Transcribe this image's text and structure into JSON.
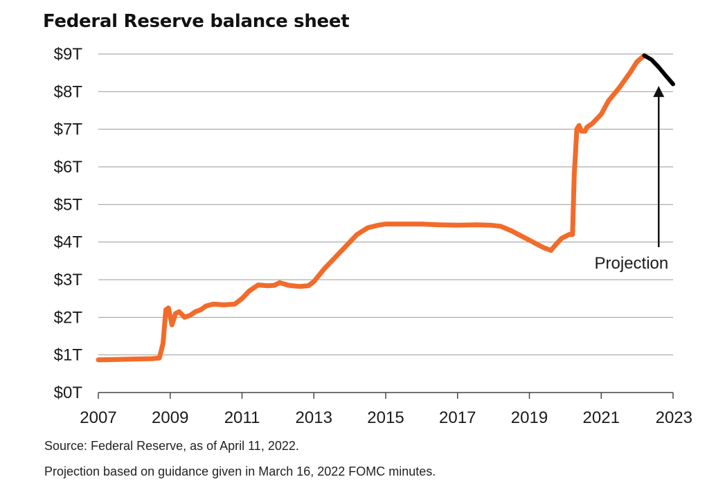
{
  "chart_data": {
    "type": "line",
    "title": "Federal Reserve balance sheet",
    "xlabel": "",
    "ylabel": "",
    "xlim": [
      2007,
      2023
    ],
    "ylim": [
      0,
      9
    ],
    "grid": "horizontal",
    "x_ticks": [
      2007,
      2009,
      2011,
      2013,
      2015,
      2017,
      2019,
      2021,
      2023
    ],
    "x_tick_labels": [
      "2007",
      "2009",
      "2011",
      "2013",
      "2015",
      "2017",
      "2019",
      "2021",
      "2023"
    ],
    "y_ticks": [
      0,
      1,
      2,
      3,
      4,
      5,
      6,
      7,
      8,
      9
    ],
    "y_tick_labels": [
      "$0T",
      "$1T",
      "$2T",
      "$3T",
      "$4T",
      "$5T",
      "$6T",
      "$7T",
      "$8T",
      "$9T"
    ],
    "series": [
      {
        "color": "#f26b2a",
        "x": [
          2007.0,
          2007.5,
          2008.0,
          2008.5,
          2008.7,
          2008.8,
          2008.88,
          2008.95,
          2009.05,
          2009.15,
          2009.25,
          2009.4,
          2009.55,
          2009.7,
          2009.85,
          2010.0,
          2010.2,
          2010.5,
          2010.8,
          2011.0,
          2011.2,
          2011.45,
          2011.7,
          2011.9,
          2012.05,
          2012.3,
          2012.6,
          2012.85,
          2013.0,
          2013.3,
          2013.6,
          2013.9,
          2014.2,
          2014.5,
          2014.8,
          2015.0,
          2015.5,
          2016.0,
          2016.5,
          2017.0,
          2017.5,
          2017.9,
          2018.2,
          2018.5,
          2018.8,
          2019.1,
          2019.4,
          2019.6,
          2019.75,
          2019.9,
          2020.0,
          2020.1,
          2020.2,
          2020.25,
          2020.28,
          2020.32,
          2020.38,
          2020.45,
          2020.55,
          2020.6,
          2020.75,
          2021.0,
          2021.2,
          2021.5,
          2021.8,
          2022.0,
          2022.2
        ],
        "values": [
          0.87,
          0.88,
          0.89,
          0.9,
          0.92,
          1.3,
          2.2,
          2.25,
          1.8,
          2.1,
          2.15,
          2.0,
          2.05,
          2.15,
          2.2,
          2.3,
          2.35,
          2.33,
          2.35,
          2.5,
          2.7,
          2.86,
          2.84,
          2.85,
          2.92,
          2.85,
          2.82,
          2.84,
          2.95,
          3.3,
          3.6,
          3.9,
          4.2,
          4.38,
          4.45,
          4.48,
          4.48,
          4.48,
          4.46,
          4.45,
          4.46,
          4.45,
          4.42,
          4.3,
          4.15,
          4.0,
          3.85,
          3.78,
          3.95,
          4.1,
          4.15,
          4.2,
          4.2,
          5.8,
          6.3,
          7.0,
          7.1,
          6.95,
          6.95,
          7.05,
          7.15,
          7.4,
          7.75,
          8.1,
          8.5,
          8.8,
          8.96
        ]
      },
      {
        "name": "Projection",
        "color": "#000000",
        "x": [
          2022.2,
          2022.4,
          2022.6,
          2022.8,
          2023.0
        ],
        "values": [
          8.96,
          8.85,
          8.65,
          8.42,
          8.2
        ]
      }
    ],
    "annotations": [
      {
        "text": "Projection",
        "target_x": 2022.6,
        "target_y": 8.15
      }
    ]
  },
  "source_line1": "Source: Federal Reserve, as of April 11, 2022.",
  "source_line2": "Projection based on guidance given in March 16, 2022 FOMC minutes."
}
